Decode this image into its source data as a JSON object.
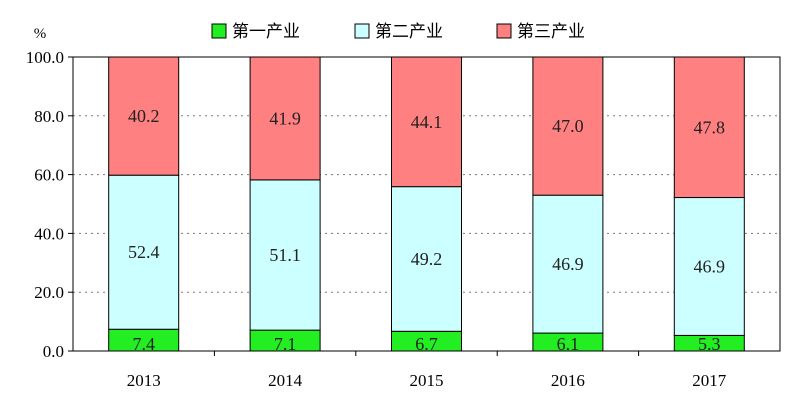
{
  "chart_data": {
    "type": "bar",
    "stacked": true,
    "categories": [
      "2013",
      "2014",
      "2015",
      "2016",
      "2017"
    ],
    "series": [
      {
        "name": "第一产业",
        "values": [
          7.4,
          7.1,
          6.7,
          6.1,
          5.3
        ],
        "color": "#22ee22"
      },
      {
        "name": "第二产业",
        "values": [
          52.4,
          51.1,
          49.2,
          46.9,
          46.9
        ],
        "color": "#ccffff"
      },
      {
        "name": "第三产业",
        "values": [
          40.2,
          41.9,
          44.1,
          47.0,
          47.8
        ],
        "color": "#ff8080"
      }
    ],
    "yunit": "%",
    "ylim": [
      0,
      100
    ],
    "yticks": [
      "0.0",
      "20.0",
      "40.0",
      "60.0",
      "80.0",
      "100.0"
    ],
    "grid": "horizontal dotted",
    "legend_position": "top"
  }
}
